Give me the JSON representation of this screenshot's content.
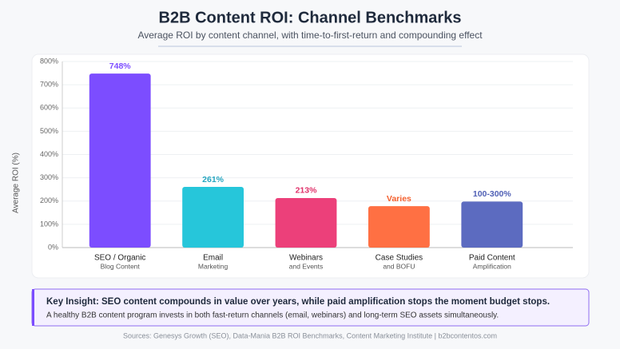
{
  "chart_data": {
    "type": "bar",
    "title": "B2B Content ROI: Channel Benchmarks",
    "subtitle": "Average ROI by content channel, with time-to-first-return and compounding effect",
    "y_label": "Average ROI (%)",
    "categories": [
      "SEO / Organic",
      "Email",
      "Webinars",
      "Case Studies",
      "Paid Content"
    ],
    "category_sublabels": [
      "Blog Content",
      "Marketing",
      "and Events",
      "and BOFU",
      "Amplification"
    ],
    "values": [
      748,
      261,
      213,
      178,
      198
    ],
    "value_labels": [
      "748%",
      "261%",
      "213%",
      "Varies",
      "100-300%"
    ],
    "colors": [
      "#7c4dff",
      "#26c6da",
      "#ec407a",
      "#ff7043",
      "#5c6bc0"
    ],
    "label_colors": [
      "#7c4dff",
      "#26a6c0",
      "#e0336b",
      "#f4602e",
      "#4f5fb5"
    ],
    "ylim": [
      0,
      800
    ],
    "yticks": [
      {
        "value": 0,
        "label": "0%"
      },
      {
        "value": 100,
        "label": "100%"
      },
      {
        "value": 200,
        "label": "200%"
      },
      {
        "value": 300,
        "label": "300%"
      },
      {
        "value": 400,
        "label": "400%"
      },
      {
        "value": 500,
        "label": "500%"
      },
      {
        "value": 600,
        "label": "600%"
      },
      {
        "value": 700,
        "label": "700%"
      },
      {
        "value": 800,
        "label": "800%"
      }
    ],
    "grid": true
  },
  "insight": {
    "title": "Key Insight: SEO content compounds in value over years, while paid amplification stops the moment budget stops.",
    "text": "A healthy B2B content program invests in both fast-return channels (email, webinars) and long-term SEO assets simultaneously."
  },
  "footer": "Sources: Genesys Growth (SEO), Data-Mania B2B ROI Benchmarks, Content Marketing Institute | b2bcontentos.com"
}
